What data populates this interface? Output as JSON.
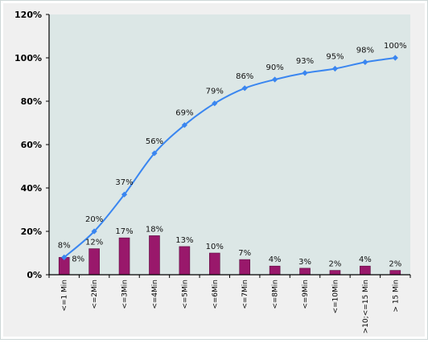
{
  "chart_data": {
    "type": "bar+line",
    "title": "",
    "xlabel": "",
    "ylabel": "",
    "ylim": [
      0,
      120
    ],
    "yticks": [
      "0%",
      "20%",
      "40%",
      "60%",
      "80%",
      "100%",
      "120%"
    ],
    "categories": [
      "<=1 Min",
      "<=2Min",
      "<=3Min",
      "<=4Min",
      "<=5Min",
      "<=6Min",
      "<=7Min",
      "<=8Min",
      "<=9Min",
      "<=10Min",
      ">10;<=15 Min",
      "> 15 Min"
    ],
    "series": [
      {
        "type": "bar",
        "values": [
          8,
          12,
          17,
          18,
          13,
          10,
          7,
          4,
          3,
          2,
          4,
          2
        ],
        "labels": [
          "8%",
          "12%",
          "17%",
          "18%",
          "13%",
          "10%",
          "7%",
          "4%",
          "3%",
          "2%",
          "4%",
          "2%"
        ],
        "color": "#99186b"
      },
      {
        "type": "line",
        "values": [
          8,
          20,
          37,
          56,
          69,
          79,
          86,
          90,
          93,
          95,
          98,
          100
        ],
        "labels": [
          "8%",
          "20%",
          "37%",
          "56%",
          "69%",
          "79%",
          "86%",
          "90%",
          "93%",
          "95%",
          "98%",
          "100%"
        ],
        "color": "#3a86f0"
      }
    ],
    "grid": false,
    "legend": "none",
    "colors": {
      "plot_background": "#dce7e6",
      "outer_background": "#f0f0f0",
      "bar": "#99186b",
      "line": "#3a86f0",
      "axis": "#000000"
    }
  }
}
